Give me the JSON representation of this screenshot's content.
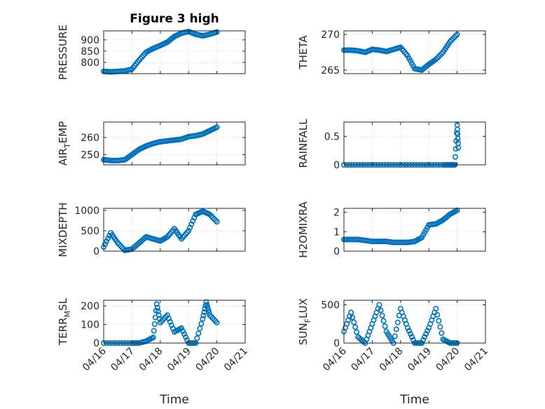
{
  "figure_title": "Figure 3 high",
  "colors": {
    "marker": "#0072BD",
    "axis": "#262626",
    "grid": "#c8c8c8"
  },
  "chart_data": [
    {
      "type": "scatter",
      "title": "Figure 3 high",
      "ylabel_parts": [
        "PRESSURE"
      ],
      "ylim": [
        750,
        940
      ],
      "yticks": [
        800,
        850,
        900
      ],
      "xlim": [
        "2023-04-16",
        "2023-04-21"
      ],
      "xticks": [
        "04/16",
        "04/17",
        "04/18",
        "04/19",
        "04/20",
        "04/21"
      ],
      "grid": true,
      "x": [
        "2023-04-16T00:00",
        "2023-04-16T06:00",
        "2023-04-16T12:00",
        "2023-04-16T18:00",
        "2023-04-17T00:00",
        "2023-04-17T06:00",
        "2023-04-17T12:00",
        "2023-04-17T18:00",
        "2023-04-18T00:00",
        "2023-04-18T06:00",
        "2023-04-18T12:00",
        "2023-04-18T18:00",
        "2023-04-19T00:00",
        "2023-04-19T06:00",
        "2023-04-19T12:00",
        "2023-04-19T18:00",
        "2023-04-20T00:00"
      ],
      "y": [
        760,
        758,
        760,
        762,
        770,
        810,
        845,
        862,
        875,
        890,
        915,
        930,
        937,
        925,
        918,
        925,
        935
      ]
    },
    {
      "type": "scatter",
      "title": "",
      "ylabel_parts": [
        "THETA"
      ],
      "ylim": [
        264.5,
        270.5
      ],
      "yticks": [
        265,
        270
      ],
      "xlim": [
        "2023-04-16",
        "2023-04-21"
      ],
      "xticks": [
        "04/16",
        "04/17",
        "04/18",
        "04/19",
        "04/20",
        "04/21"
      ],
      "grid": true,
      "x": [
        "2023-04-16T00:00",
        "2023-04-16T06:00",
        "2023-04-16T12:00",
        "2023-04-16T18:00",
        "2023-04-17T00:00",
        "2023-04-17T06:00",
        "2023-04-17T12:00",
        "2023-04-17T18:00",
        "2023-04-18T00:00",
        "2023-04-18T06:00",
        "2023-04-18T12:00",
        "2023-04-18T18:00",
        "2023-04-19T00:00",
        "2023-04-19T06:00",
        "2023-04-19T12:00",
        "2023-04-19T18:00",
        "2023-04-20T00:00"
      ],
      "y": [
        267.8,
        267.8,
        267.7,
        267.5,
        267.9,
        267.8,
        267.6,
        267.9,
        268.2,
        267.0,
        265.2,
        265.0,
        265.8,
        266.5,
        267.5,
        269.0,
        270.0
      ]
    },
    {
      "type": "scatter",
      "title": "",
      "ylabel_parts": [
        "AIR",
        "T",
        "EMP"
      ],
      "ylim": [
        244,
        269
      ],
      "yticks": [
        250,
        260
      ],
      "xlim": [
        "2023-04-16",
        "2023-04-21"
      ],
      "xticks": [
        "04/16",
        "04/17",
        "04/18",
        "04/19",
        "04/20",
        "04/21"
      ],
      "grid": true,
      "x": [
        "2023-04-16T00:00",
        "2023-04-16T06:00",
        "2023-04-16T12:00",
        "2023-04-16T18:00",
        "2023-04-17T00:00",
        "2023-04-17T06:00",
        "2023-04-17T12:00",
        "2023-04-17T18:00",
        "2023-04-18T00:00",
        "2023-04-18T06:00",
        "2023-04-18T12:00",
        "2023-04-18T18:00",
        "2023-04-19T00:00",
        "2023-04-19T06:00",
        "2023-04-19T12:00",
        "2023-04-19T18:00",
        "2023-04-20T00:00"
      ],
      "y": [
        247,
        246.5,
        246.5,
        247,
        250,
        253,
        255,
        256.5,
        257.5,
        258,
        258.5,
        259,
        260.5,
        261,
        262,
        264,
        266
      ]
    },
    {
      "type": "scatter",
      "title": "",
      "ylabel_parts": [
        "RAINFALL"
      ],
      "ylim": [
        0,
        0.75
      ],
      "yticks": [
        0,
        0.5
      ],
      "ytick_labels": [
        "0",
        "0.5"
      ],
      "xlim": [
        "2023-04-16",
        "2023-04-21"
      ],
      "xticks": [
        "04/16",
        "04/17",
        "04/18",
        "04/19",
        "04/20",
        "04/21"
      ],
      "grid": true,
      "x": [
        "2023-04-16T00:00",
        "2023-04-16T12:00",
        "2023-04-17T00:00",
        "2023-04-17T12:00",
        "2023-04-18T00:00",
        "2023-04-18T12:00",
        "2023-04-19T00:00",
        "2023-04-19T12:00",
        "2023-04-19T18:00",
        "2023-04-19T22:00",
        "2023-04-20T00:00",
        "2023-04-20T01:00"
      ],
      "y": [
        0,
        0,
        0,
        0,
        0,
        0,
        0,
        0,
        0,
        0,
        0.7,
        0.3
      ]
    },
    {
      "type": "scatter",
      "title": "",
      "ylabel_parts": [
        "MIXDEPTH"
      ],
      "ylim": [
        0,
        1050
      ],
      "yticks": [
        0,
        500,
        1000
      ],
      "xlim": [
        "2023-04-16",
        "2023-04-21"
      ],
      "xticks": [
        "04/16",
        "04/17",
        "04/18",
        "04/19",
        "04/20",
        "04/21"
      ],
      "grid": true,
      "x": [
        "2023-04-16T00:00",
        "2023-04-16T06:00",
        "2023-04-16T12:00",
        "2023-04-16T18:00",
        "2023-04-17T00:00",
        "2023-04-17T06:00",
        "2023-04-17T12:00",
        "2023-04-17T18:00",
        "2023-04-18T00:00",
        "2023-04-18T06:00",
        "2023-04-18T12:00",
        "2023-04-18T18:00",
        "2023-04-19T00:00",
        "2023-04-19T06:00",
        "2023-04-19T12:00",
        "2023-04-19T18:00",
        "2023-04-20T00:00"
      ],
      "y": [
        100,
        450,
        200,
        20,
        50,
        200,
        350,
        300,
        250,
        350,
        550,
        300,
        500,
        900,
        980,
        900,
        720
      ]
    },
    {
      "type": "scatter",
      "title": "",
      "ylabel_parts": [
        "H2OMIXRA"
      ],
      "ylim": [
        0,
        2.2
      ],
      "yticks": [
        0,
        1,
        2
      ],
      "xlim": [
        "2023-04-16",
        "2023-04-21"
      ],
      "xticks": [
        "04/16",
        "04/17",
        "04/18",
        "04/19",
        "04/20",
        "04/21"
      ],
      "grid": true,
      "x": [
        "2023-04-16T00:00",
        "2023-04-16T06:00",
        "2023-04-16T12:00",
        "2023-04-16T18:00",
        "2023-04-17T00:00",
        "2023-04-17T06:00",
        "2023-04-17T12:00",
        "2023-04-17T18:00",
        "2023-04-18T00:00",
        "2023-04-18T06:00",
        "2023-04-18T12:00",
        "2023-04-18T18:00",
        "2023-04-19T00:00",
        "2023-04-19T06:00",
        "2023-04-19T12:00",
        "2023-04-19T18:00",
        "2023-04-20T00:00"
      ],
      "y": [
        0.6,
        0.6,
        0.6,
        0.55,
        0.5,
        0.5,
        0.5,
        0.45,
        0.45,
        0.45,
        0.5,
        0.7,
        1.35,
        1.4,
        1.6,
        1.9,
        2.1
      ]
    },
    {
      "type": "scatter",
      "title": "",
      "ylabel_parts": [
        "TERR",
        "M",
        "SL"
      ],
      "ylim": [
        0,
        230
      ],
      "yticks": [
        0,
        100,
        200
      ],
      "xlim": [
        "2023-04-16",
        "2023-04-21"
      ],
      "xticks": [
        "04/16",
        "04/17",
        "04/18",
        "04/19",
        "04/20",
        "04/21"
      ],
      "xlabel": "Time",
      "grid": true,
      "x": [
        "2023-04-16T00:00",
        "2023-04-16T12:00",
        "2023-04-17T00:00",
        "2023-04-17T06:00",
        "2023-04-17T12:00",
        "2023-04-17T18:00",
        "2023-04-17T21:00",
        "2023-04-18T00:00",
        "2023-04-18T06:00",
        "2023-04-18T12:00",
        "2023-04-18T18:00",
        "2023-04-19T00:00",
        "2023-04-19T06:00",
        "2023-04-19T12:00",
        "2023-04-19T15:00",
        "2023-04-19T18:00",
        "2023-04-20T00:00"
      ],
      "y": [
        0,
        0,
        0,
        0,
        10,
        30,
        210,
        110,
        150,
        60,
        80,
        0,
        0,
        130,
        220,
        150,
        110
      ]
    },
    {
      "type": "scatter",
      "title": "",
      "ylabel_parts": [
        "SUN",
        "F",
        "LUX"
      ],
      "ylim": [
        0,
        560
      ],
      "yticks": [
        0,
        500
      ],
      "xlim": [
        "2023-04-16",
        "2023-04-21"
      ],
      "xticks": [
        "04/16",
        "04/17",
        "04/18",
        "04/19",
        "04/20",
        "04/21"
      ],
      "xlabel": "Time",
      "grid": true,
      "x": [
        "2023-04-16T00:00",
        "2023-04-16T06:00",
        "2023-04-16T12:00",
        "2023-04-16T18:00",
        "2023-04-17T00:00",
        "2023-04-17T06:00",
        "2023-04-17T12:00",
        "2023-04-17T18:00",
        "2023-04-18T00:00",
        "2023-04-18T06:00",
        "2023-04-18T12:00",
        "2023-04-18T18:00",
        "2023-04-19T00:00",
        "2023-04-19T06:00",
        "2023-04-19T12:00",
        "2023-04-19T18:00",
        "2023-04-20T00:00"
      ],
      "y": [
        150,
        400,
        80,
        0,
        250,
        500,
        150,
        0,
        450,
        200,
        0,
        0,
        200,
        450,
        50,
        0,
        0
      ]
    }
  ]
}
